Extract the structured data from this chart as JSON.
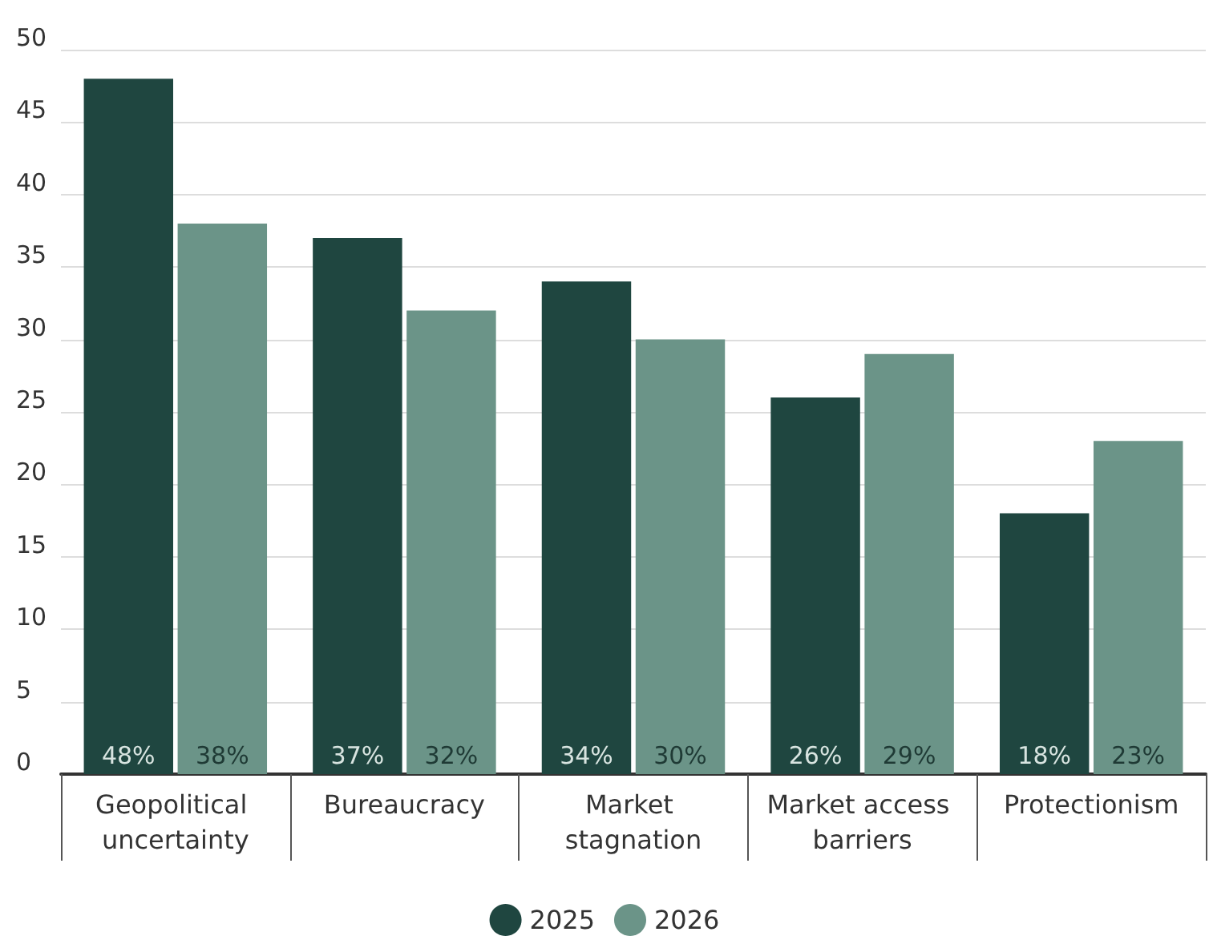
{
  "chart_data": {
    "type": "bar",
    "categories": [
      "Geopolitical uncertainty",
      "Bureaucracy",
      "Market stagnation",
      "Market access barriers",
      "Protectionism"
    ],
    "series": [
      {
        "name": "2025",
        "color": "#1f4640",
        "values": [
          48,
          37,
          34,
          26,
          18
        ],
        "value_labels": [
          "48%",
          "37%",
          "34%",
          "26%",
          "18%"
        ]
      },
      {
        "name": "2026",
        "color": "#6b9488",
        "values": [
          38,
          32,
          30,
          29,
          23
        ],
        "value_labels": [
          "38%",
          "32%",
          "30%",
          "29%",
          "23%"
        ]
      }
    ],
    "ylim": [
      0,
      50
    ],
    "yticks": [
      0,
      5,
      10,
      15,
      20,
      25,
      30,
      35,
      40,
      45,
      50
    ],
    "grid": "y",
    "legend": "bottom"
  }
}
